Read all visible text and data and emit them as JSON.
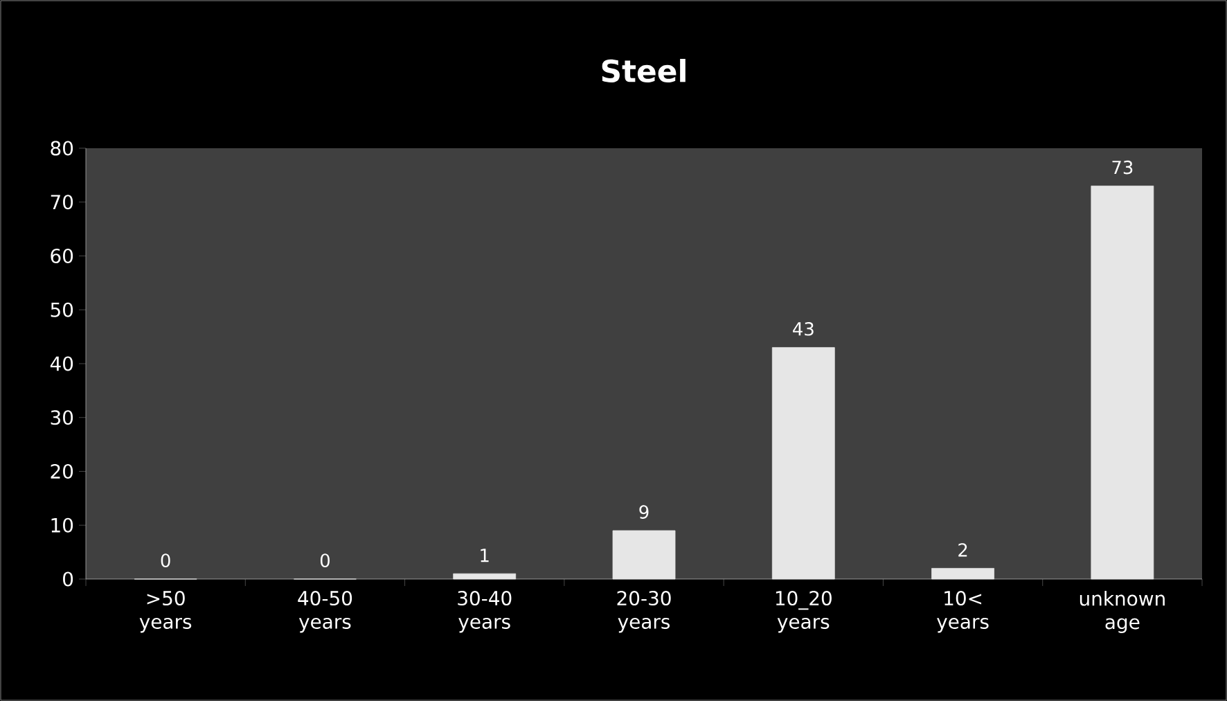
{
  "chart_data": {
    "type": "bar",
    "title": "Steel",
    "categories": [
      ">50 years",
      "40-50 years",
      "30-40 years",
      "20-30 years",
      "10_20 years",
      "10< years",
      "unknown age"
    ],
    "values": [
      0,
      0,
      1,
      9,
      43,
      2,
      73
    ],
    "color": "#e6e6e6",
    "ylim": [
      0,
      80
    ],
    "yticks": [
      0,
      10,
      20,
      30,
      40,
      50,
      60,
      70,
      80
    ],
    "data_labels": true,
    "grid": false
  }
}
